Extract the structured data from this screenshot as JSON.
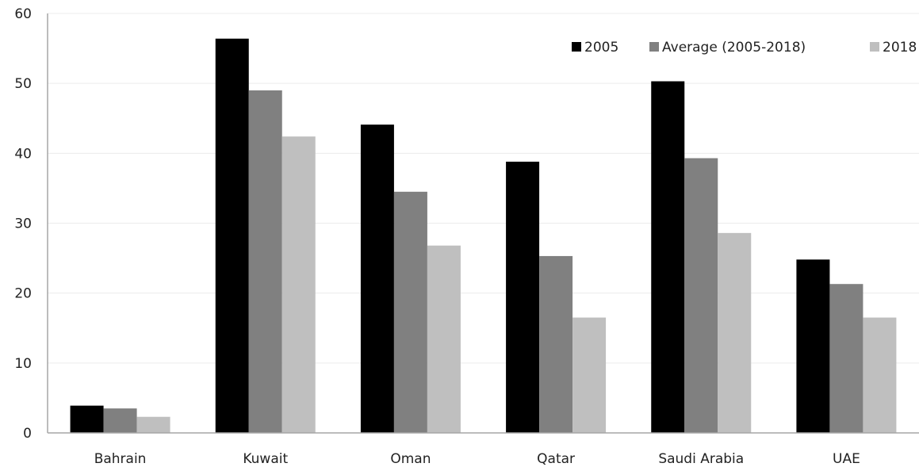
{
  "chart_data": {
    "type": "bar",
    "categories": [
      "Bahrain",
      "Kuwait",
      "Oman",
      "Qatar",
      "Saudi Arabia",
      "UAE"
    ],
    "series": [
      {
        "name": "2005",
        "color": "#000000",
        "values": [
          3.9,
          56.4,
          44.1,
          38.8,
          50.3,
          24.8
        ]
      },
      {
        "name": "Average (2005-2018)",
        "color": "#808080",
        "values": [
          3.5,
          49.0,
          34.5,
          25.3,
          39.3,
          21.3
        ]
      },
      {
        "name": "2018",
        "color": "#bfbfbf",
        "values": [
          2.3,
          42.4,
          26.8,
          16.5,
          28.6,
          16.5
        ]
      }
    ],
    "ylim": [
      0,
      60
    ],
    "yticks": [
      0,
      10,
      20,
      30,
      40,
      50,
      60
    ],
    "grid": true,
    "legend_position": "top-right"
  }
}
